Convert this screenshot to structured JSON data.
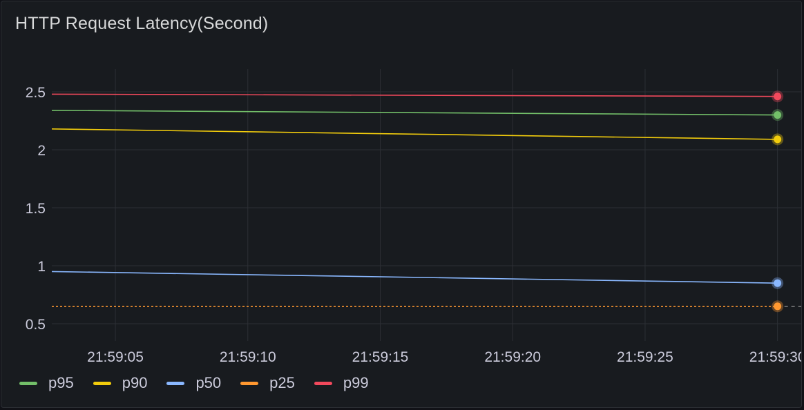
{
  "panel": {
    "title": "HTTP Request Latency(Second)"
  },
  "chart_data": {
    "type": "line",
    "title": "HTTP Request Latency(Second)",
    "xlabel": "",
    "ylabel": "",
    "x_ticks": [
      "21:59:05",
      "21:59:10",
      "21:59:15",
      "21:59:20",
      "21:59:25",
      "21:59:30"
    ],
    "y_ticks": [
      "0.5",
      "1",
      "1.5",
      "2",
      "2.5"
    ],
    "xlim": [
      "21:59:02.6",
      "21:59:31"
    ],
    "ylim": [
      0.5,
      2.5
    ],
    "grid": true,
    "legend_position": "bottom-left",
    "series": [
      {
        "name": "p95",
        "color": "#73bf69",
        "x": [
          "21:59:02.6",
          "21:59:30"
        ],
        "values": [
          2.34,
          2.3
        ]
      },
      {
        "name": "p90",
        "color": "#f2cc0c",
        "x": [
          "21:59:02.6",
          "21:59:30"
        ],
        "values": [
          2.18,
          2.09
        ]
      },
      {
        "name": "p50",
        "color": "#8ab8ff",
        "x": [
          "21:59:02.6",
          "21:59:30"
        ],
        "values": [
          0.95,
          0.85
        ]
      },
      {
        "name": "p25",
        "color": "#ff9830",
        "x": [
          "21:59:02.6",
          "21:59:30"
        ],
        "values": [
          0.65,
          0.65
        ],
        "dashed": true
      },
      {
        "name": "p99",
        "color": "#f2495c",
        "x": [
          "21:59:02.6",
          "21:59:30"
        ],
        "values": [
          2.48,
          2.46
        ]
      }
    ]
  }
}
